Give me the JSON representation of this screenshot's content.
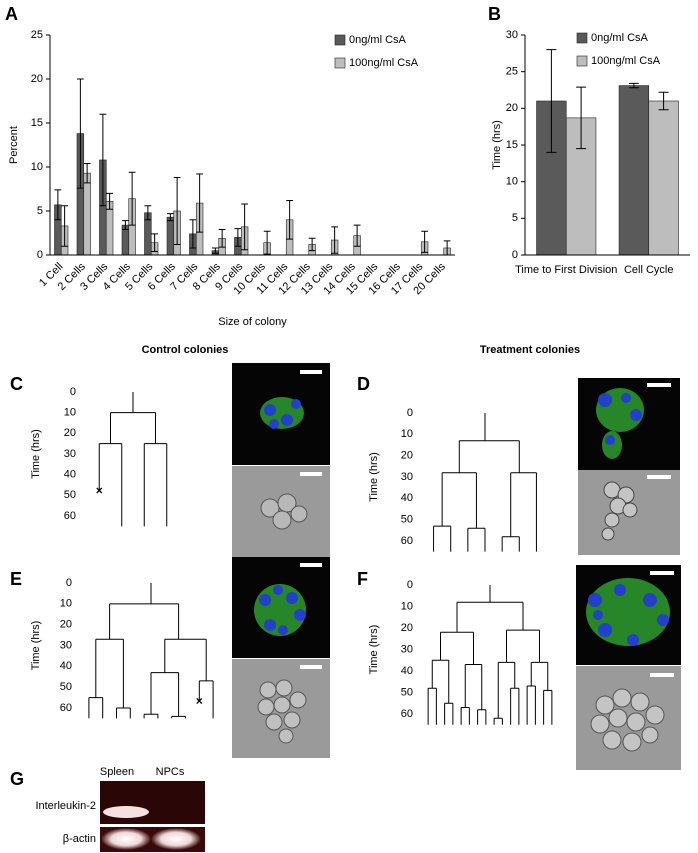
{
  "chart_data": [
    {
      "type": "bar",
      "panel": "A",
      "ylabel": "Percent",
      "xlabel": "Size of colony",
      "categories": [
        "1 Cell",
        "2 Cells",
        "3 Cells",
        "4 Cells",
        "5 Cells",
        "6 Cells",
        "7 Cells",
        "8 Cells",
        "9 Cells",
        "10 Cells",
        "11 Cells",
        "12 Cells",
        "13 Cells",
        "14 Cells",
        "15 Cells",
        "16 Cells",
        "17 Cells",
        "20 Cells"
      ],
      "series": [
        {
          "name": "0ng/ml CsA",
          "color": "#5a5a5a",
          "values": [
            5.7,
            13.8,
            10.8,
            3.4,
            4.8,
            4.3,
            2.4,
            0.5,
            2.0,
            0,
            0,
            0,
            0,
            0,
            0,
            0,
            0,
            0
          ],
          "errors": [
            1.7,
            6.2,
            5.2,
            0.5,
            0.8,
            0.4,
            1.6,
            0.3,
            1.0,
            0,
            0,
            0,
            0,
            0,
            0,
            0,
            0,
            0
          ]
        },
        {
          "name": "100ng/ml CsA",
          "color": "#bdbdbd",
          "values": [
            3.3,
            9.3,
            6.1,
            6.4,
            1.4,
            5.0,
            5.9,
            1.9,
            3.2,
            1.4,
            4.0,
            1.2,
            1.7,
            2.2,
            0,
            0,
            1.5,
            0.8
          ],
          "errors": [
            2.3,
            1.1,
            0.9,
            3.0,
            1.0,
            3.8,
            3.3,
            1.0,
            2.6,
            1.3,
            2.2,
            0.7,
            1.5,
            1.2,
            0,
            0,
            1.2,
            0.8
          ]
        }
      ],
      "ylim": [
        0,
        25
      ],
      "yticks": [
        0,
        5,
        10,
        15,
        20,
        25
      ],
      "legend": "upper right"
    },
    {
      "type": "bar",
      "panel": "B",
      "ylabel": "Time (hrs)",
      "categories": [
        "Time to First Division",
        "Cell Cycle"
      ],
      "series": [
        {
          "name": "0ng/ml CsA",
          "color": "#5a5a5a",
          "values": [
            21,
            23.1
          ],
          "errors": [
            7,
            0.3
          ]
        },
        {
          "name": "100ng/ml CsA",
          "color": "#bdbdbd",
          "values": [
            18.7,
            21
          ],
          "errors": [
            4.2,
            1.2
          ]
        }
      ],
      "ylim": [
        0,
        30
      ],
      "yticks": [
        0,
        5,
        10,
        15,
        20,
        25,
        30
      ],
      "legend": "upper right"
    }
  ],
  "headings": [
    "Control colonies",
    "Treatment colonies"
  ],
  "lineage": {
    "panels": [
      "C",
      "D",
      "E",
      "F"
    ],
    "ylabel": "Time (hrs)",
    "yticks": [
      0,
      10,
      20,
      30,
      40,
      50,
      60
    ]
  },
  "gel": {
    "panel": "G",
    "lanes": [
      "Spleen",
      "NPCs"
    ],
    "genes": [
      "Interleukin-2",
      "β-actin"
    ]
  }
}
